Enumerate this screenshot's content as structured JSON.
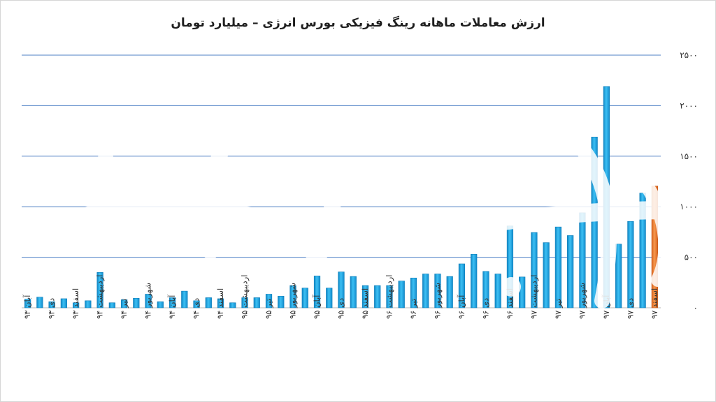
{
  "chart_data": {
    "type": "bar",
    "title": "ارزش معاملات ماهانه رینگ فیزیکی بورس انرژی – میلیارد تومان",
    "xlabel": "",
    "ylabel": "",
    "ylim": [
      0,
      2500
    ],
    "yticks": [
      "۰",
      "۵۰۰",
      "۱۰۰۰",
      "۱۵۰۰",
      "۲۰۰۰",
      "۲۵۰۰"
    ],
    "grid": true,
    "colors": {
      "bar": "#1fa6e3",
      "highlight": "#ee7b2f",
      "grid": "#4c7fc4"
    },
    "categories": [
      "آبان ۹۳",
      "",
      "دی ۹۳",
      "",
      "اسفند ۹۳",
      "",
      "اردیبهشت ۹۴",
      "",
      "تیر ۹۴",
      "",
      "شهریور ۹۴",
      "",
      "آبان ۹۴",
      "",
      "دی ۹۴",
      "",
      "اسفند ۹۴",
      "",
      "اردیبهشت ۹۵",
      "",
      "تیر ۹۵",
      "",
      "شهریور ۹۵",
      "",
      "آبان ۹۵",
      "",
      "دی ۹۵",
      "",
      "اسفند ۹۵",
      "",
      "اردیبهشت ۹۶",
      "",
      "تیر ۹۶",
      "",
      "شهریور ۹۶",
      "",
      "آبان ۹۶",
      "",
      "دی ۹۶",
      "",
      "اسفند ۹۶",
      "",
      "اردیبهشت ۹۷",
      "",
      "تیر ۹۷",
      "",
      "شهریور ۹۷",
      "",
      "آبان ۹۷",
      "",
      "دی ۹۷",
      "",
      "اسفند ۹۷"
    ],
    "values": [
      85,
      105,
      60,
      90,
      50,
      70,
      350,
      50,
      80,
      95,
      135,
      60,
      100,
      165,
      70,
      100,
      90,
      50,
      100,
      100,
      135,
      115,
      220,
      195,
      315,
      195,
      355,
      310,
      220,
      220,
      220,
      265,
      295,
      335,
      335,
      310,
      435,
      530,
      360,
      335,
      810,
      305,
      745,
      645,
      800,
      715,
      940,
      1690,
      2190,
      630,
      855,
      1135,
      1205
    ],
    "highlight_index": 52
  }
}
